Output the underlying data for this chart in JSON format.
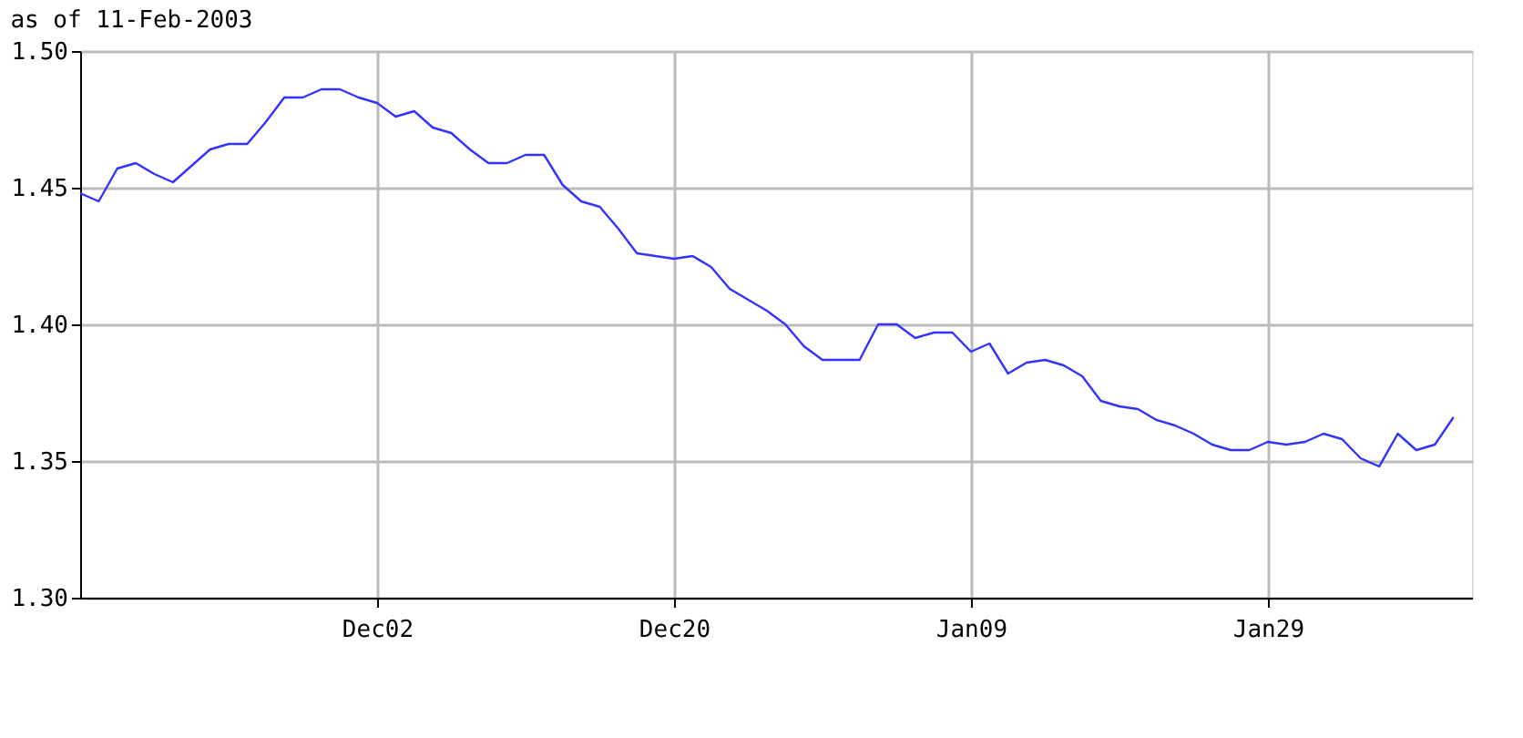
{
  "chart_data": {
    "type": "line",
    "title": "as of 11-Feb-2003",
    "categories": [
      null,
      null,
      null,
      null,
      null,
      null,
      null,
      null,
      null,
      null,
      null,
      null,
      null,
      null,
      null,
      null,
      "Dec02",
      null,
      null,
      null,
      null,
      null,
      null,
      null,
      null,
      null,
      null,
      null,
      null,
      null,
      null,
      null,
      "Dec20",
      null,
      null,
      null,
      null,
      null,
      null,
      null,
      null,
      null,
      null,
      null,
      null,
      null,
      null,
      null,
      "Jan09",
      null,
      null,
      null,
      null,
      null,
      null,
      null,
      null,
      null,
      null,
      null,
      null,
      null,
      null,
      null,
      "Jan29",
      null,
      null,
      null,
      null,
      null,
      null,
      null,
      null,
      null,
      null,
      null
    ],
    "series": [
      {
        "color": "#3333ff",
        "values": [
          1.448,
          1.445,
          1.457,
          1.459,
          1.455,
          1.452,
          1.458,
          1.464,
          1.466,
          1.466,
          1.474,
          1.483,
          1.483,
          1.486,
          1.486,
          1.483,
          1.481,
          1.476,
          1.478,
          1.472,
          1.47,
          1.464,
          1.459,
          1.459,
          1.462,
          1.462,
          1.451,
          1.445,
          1.443,
          1.435,
          1.426,
          1.425,
          1.424,
          1.425,
          1.421,
          1.413,
          1.409,
          1.405,
          1.4,
          1.392,
          1.387,
          1.387,
          1.387,
          1.4,
          1.4,
          1.395,
          1.397,
          1.397,
          1.39,
          1.393,
          1.382,
          1.386,
          1.387,
          1.385,
          1.381,
          1.372,
          1.37,
          1.369,
          1.365,
          1.363,
          1.36,
          1.356,
          1.354,
          1.354,
          1.357,
          1.356,
          1.357,
          1.36,
          1.358,
          1.351,
          1.348,
          1.36,
          1.354,
          1.356,
          1.366,
          null
        ]
      }
    ],
    "ylim": [
      1.3,
      1.5
    ],
    "yticks": [
      {
        "value": 1.3,
        "label": "1.30"
      },
      1.35,
      {
        "value": 1.4,
        "label": "1.40"
      },
      1.45,
      {
        "value": 1.5,
        "label": "1.50"
      }
    ],
    "grid": true,
    "marker": "none",
    "line_style": "solid"
  }
}
